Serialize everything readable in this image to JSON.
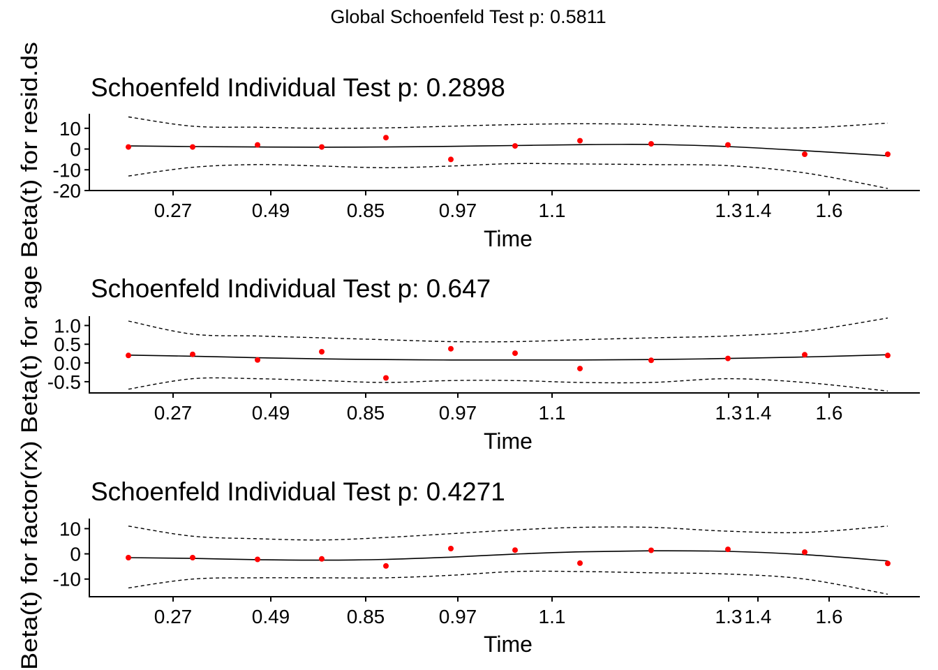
{
  "global_title": "Global Schoenfeld Test p: 0.5811",
  "chart_data": [
    {
      "type": "scatter",
      "title": "Schoenfeld Individual Test p: 0.2898",
      "xlabel": "Time",
      "ylabel": "Beta(t) for resid.ds",
      "x_tick_labels": [
        "0.27",
        "0.49",
        "0.85",
        "0.97",
        "1.1",
        "1.3",
        "1.4",
        "1.6"
      ],
      "y_ticks": [
        10,
        0,
        -10,
        -20
      ],
      "ylim": [
        -20,
        17
      ],
      "grid": false,
      "points": [
        1,
        1,
        2,
        1,
        5.5,
        -5,
        1.5,
        4,
        2.5,
        2,
        -2.5,
        -2.5
      ],
      "fit": [
        1.5,
        1.2,
        1.0,
        0.9,
        1.0,
        1.3,
        1.7,
        2.1,
        2.2,
        1.2,
        -0.8,
        -3.2
      ],
      "upper": [
        15.5,
        11.0,
        10.5,
        10.0,
        10.2,
        11.0,
        11.8,
        12.2,
        11.8,
        10.5,
        10.2,
        12.5
      ],
      "lower": [
        -13.0,
        -8.8,
        -7.5,
        -8.2,
        -9.0,
        -8.2,
        -7.0,
        -7.2,
        -7.5,
        -8.0,
        -11.5,
        -19.0
      ],
      "colors": {
        "points": "#ff0000",
        "fit": "#000000",
        "band": "#000000"
      }
    },
    {
      "type": "scatter",
      "title": "Schoenfeld Individual Test p: 0.647",
      "xlabel": "Time",
      "ylabel": "Beta(t) for age",
      "x_tick_labels": [
        "0.27",
        "0.49",
        "0.85",
        "0.97",
        "1.1",
        "1.3",
        "1.4",
        "1.6"
      ],
      "y_ticks": [
        1.0,
        0.5,
        0.0,
        -0.5
      ],
      "y_tick_labels": [
        "1.0",
        "0.5",
        "0.0",
        "-0.5"
      ],
      "ylim": [
        -0.8,
        1.25
      ],
      "grid": false,
      "points": [
        0.2,
        0.23,
        0.08,
        0.3,
        -0.4,
        0.38,
        0.26,
        -0.15,
        0.07,
        0.12,
        0.22,
        0.2
      ],
      "fit": [
        0.21,
        0.18,
        0.14,
        0.11,
        0.09,
        0.08,
        0.08,
        0.08,
        0.09,
        0.12,
        0.16,
        0.22
      ],
      "upper": [
        1.12,
        0.77,
        0.72,
        0.67,
        0.62,
        0.57,
        0.57,
        0.62,
        0.67,
        0.72,
        0.85,
        1.2
      ],
      "lower": [
        -0.7,
        -0.42,
        -0.42,
        -0.47,
        -0.52,
        -0.47,
        -0.47,
        -0.52,
        -0.52,
        -0.42,
        -0.52,
        -0.75
      ],
      "colors": {
        "points": "#ff0000",
        "fit": "#000000",
        "band": "#000000"
      }
    },
    {
      "type": "scatter",
      "title": "Schoenfeld Individual Test p: 0.4271",
      "xlabel": "Time",
      "ylabel": "Beta(t) for factor(rx)",
      "x_tick_labels": [
        "0.27",
        "0.49",
        "0.85",
        "0.97",
        "1.1",
        "1.3",
        "1.4",
        "1.6"
      ],
      "y_ticks": [
        10,
        0,
        -10
      ],
      "ylim": [
        -17,
        14
      ],
      "grid": false,
      "points": [
        -1.5,
        -1.5,
        -2.2,
        -2,
        -4.8,
        2.1,
        1.5,
        -3.7,
        1.4,
        1.8,
        0.7,
        -3.8
      ],
      "fit": [
        -1.5,
        -1.8,
        -2.3,
        -2.5,
        -2.2,
        -1.3,
        -0.1,
        0.8,
        1.2,
        1.0,
        -0.3,
        -2.8
      ],
      "upper": [
        11.0,
        7.0,
        6.0,
        5.5,
        6.5,
        8.0,
        9.5,
        10.5,
        10.5,
        9.0,
        8.5,
        11.0
      ],
      "lower": [
        -13.5,
        -10.0,
        -9.5,
        -9.5,
        -9.5,
        -8.5,
        -7.0,
        -7.0,
        -7.5,
        -8.0,
        -10.0,
        -16.0
      ],
      "colors": {
        "points": "#ff0000",
        "fit": "#000000",
        "band": "#000000"
      }
    }
  ]
}
